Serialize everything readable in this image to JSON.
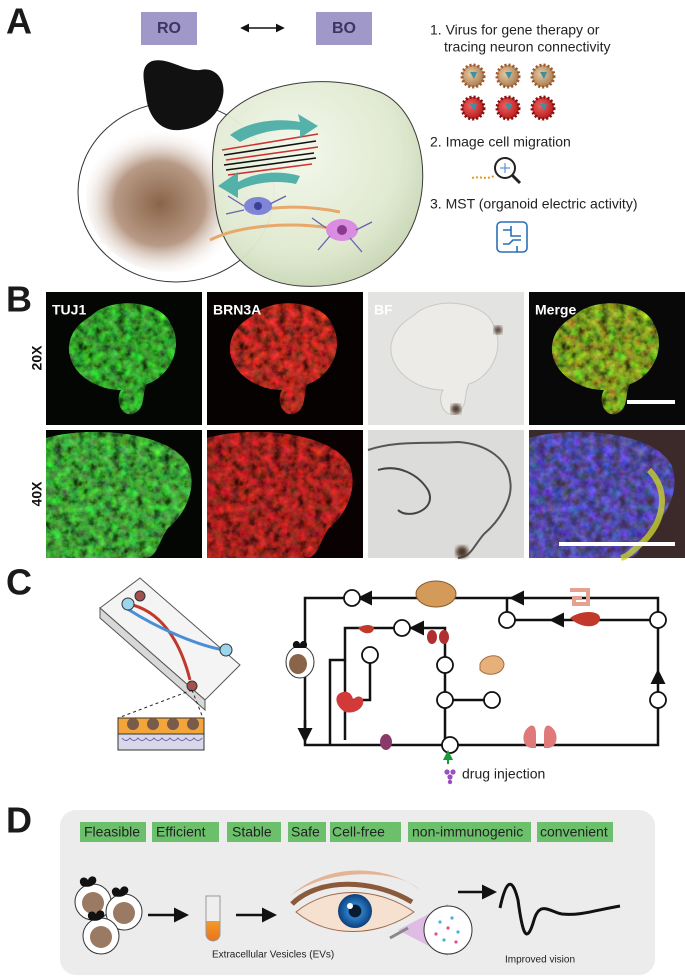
{
  "panel_a": {
    "letter": "A",
    "ro": "RO",
    "bo": "BO",
    "items": [
      [
        "1. Virus for gene therapy or",
        "tracing neuron connectivity"
      ],
      [
        "2. Image cell migration"
      ],
      [
        "3. MST (organoid electric activity)"
      ]
    ]
  },
  "panel_b": {
    "letter": "B",
    "columns": [
      "TUJ1",
      "BRN3A",
      "BF",
      "Merge"
    ],
    "rows": [
      "20X",
      "40X"
    ]
  },
  "panel_c": {
    "letter": "C",
    "drug_injection": "drug injection"
  },
  "panel_d": {
    "letter": "D",
    "properties": [
      "Fleasible",
      "Efficient",
      "Stable",
      "Safe",
      "Cell-free",
      "non-immunogenic",
      "convenient"
    ],
    "ev_label": "Extracellular Vesicles (EVs)",
    "outcome_label": "Improved vision"
  }
}
